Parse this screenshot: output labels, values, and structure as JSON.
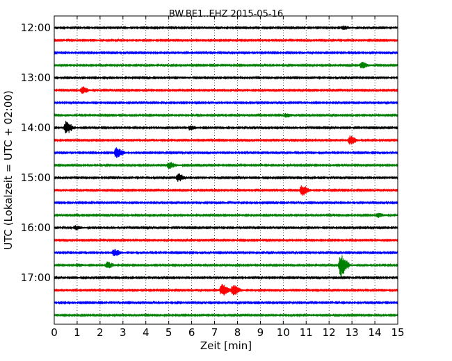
{
  "chart_data": {
    "type": "line",
    "title": "BW.BE1..EHZ 2015-05-16",
    "xlabel": "Zeit  [min]",
    "ylabel": "UTC (Lokalzeit = UTC + 02:00)",
    "xlim": [
      0,
      15
    ],
    "x_ticks": [
      "0",
      "1",
      "2",
      "3",
      "4",
      "5",
      "6",
      "7",
      "8",
      "9",
      "10",
      "11",
      "12",
      "13",
      "14",
      "15"
    ],
    "y_ticks": [
      "12:00",
      "13:00",
      "14:00",
      "15:00",
      "16:00",
      "17:00"
    ],
    "grid": "vertical dotted",
    "colors": [
      "#000000",
      "#ff0000",
      "#0000ff",
      "#008000"
    ],
    "trace_interval_min": 15,
    "series": [
      {
        "start": "12:00",
        "color": "#000000",
        "events": [
          {
            "t": 12.6,
            "amp": 0.25
          }
        ]
      },
      {
        "start": "12:15",
        "color": "#ff0000",
        "events": [
          {
            "t": 1.6,
            "amp": 0.15
          }
        ]
      },
      {
        "start": "12:30",
        "color": "#0000ff",
        "events": []
      },
      {
        "start": "12:45",
        "color": "#008000",
        "events": [
          {
            "t": 13.4,
            "amp": 0.45
          }
        ]
      },
      {
        "start": "13:00",
        "color": "#000000",
        "events": [
          {
            "t": 5.6,
            "amp": 0.1
          }
        ]
      },
      {
        "start": "13:15",
        "color": "#ff0000",
        "events": [
          {
            "t": 1.2,
            "amp": 0.5
          }
        ]
      },
      {
        "start": "13:30",
        "color": "#0000ff",
        "events": []
      },
      {
        "start": "13:45",
        "color": "#008000",
        "events": [
          {
            "t": 10.1,
            "amp": 0.3
          },
          {
            "t": 0.5,
            "amp": 0.1
          }
        ]
      },
      {
        "start": "14:00",
        "color": "#000000",
        "events": [
          {
            "t": 0.5,
            "amp": 0.9
          },
          {
            "t": 5.9,
            "amp": 0.3
          }
        ]
      },
      {
        "start": "14:15",
        "color": "#ff0000",
        "events": [
          {
            "t": 12.9,
            "amp": 0.6
          }
        ]
      },
      {
        "start": "14:30",
        "color": "#0000ff",
        "events": [
          {
            "t": 2.7,
            "amp": 0.7
          }
        ]
      },
      {
        "start": "14:45",
        "color": "#008000",
        "events": [
          {
            "t": 5.0,
            "amp": 0.45
          }
        ]
      },
      {
        "start": "15:00",
        "color": "#000000",
        "events": [
          {
            "t": 5.4,
            "amp": 0.55
          }
        ]
      },
      {
        "start": "15:15",
        "color": "#ff0000",
        "events": [
          {
            "t": 10.8,
            "amp": 0.75
          }
        ]
      },
      {
        "start": "15:30",
        "color": "#0000ff",
        "events": []
      },
      {
        "start": "15:45",
        "color": "#008000",
        "events": [
          {
            "t": 14.1,
            "amp": 0.3
          }
        ]
      },
      {
        "start": "16:00",
        "color": "#000000",
        "events": [
          {
            "t": 0.9,
            "amp": 0.3
          }
        ]
      },
      {
        "start": "16:15",
        "color": "#ff0000",
        "events": []
      },
      {
        "start": "16:30",
        "color": "#0000ff",
        "events": [
          {
            "t": 2.6,
            "amp": 0.5
          }
        ]
      },
      {
        "start": "16:45",
        "color": "#008000",
        "events": [
          {
            "t": 12.5,
            "amp": 1.6
          },
          {
            "t": 2.3,
            "amp": 0.45
          },
          {
            "t": 1.0,
            "amp": 0.2
          }
        ]
      },
      {
        "start": "17:00",
        "color": "#000000",
        "events": []
      },
      {
        "start": "17:15",
        "color": "#ff0000",
        "events": [
          {
            "t": 7.3,
            "amp": 0.85
          },
          {
            "t": 7.8,
            "amp": 0.7
          }
        ]
      },
      {
        "start": "17:30",
        "color": "#0000ff",
        "events": []
      },
      {
        "start": "17:45",
        "color": "#008000",
        "events": [
          {
            "t": 10.9,
            "amp": 0.15
          }
        ]
      }
    ]
  }
}
